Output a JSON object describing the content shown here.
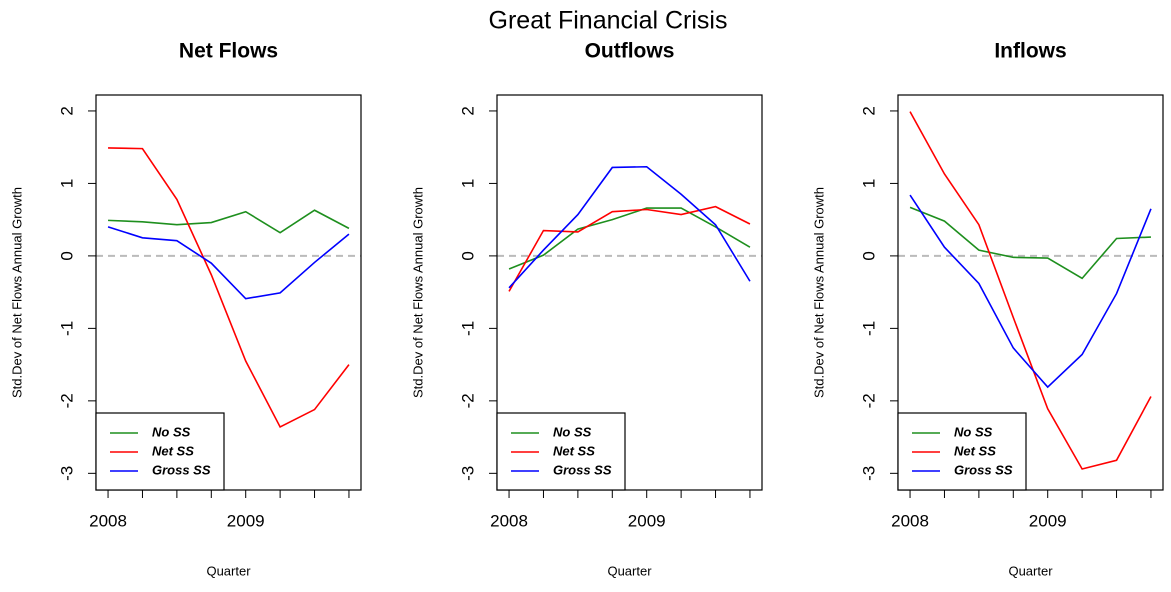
{
  "title": "Great Financial Crisis",
  "chart_data": [
    {
      "type": "line",
      "title": "Net Flows",
      "xlabel": "Quarter",
      "ylabel": "Std.Dev of Net Flows Annual Growth",
      "categories": [
        "2008",
        null,
        null,
        null,
        "2009",
        null,
        null,
        null
      ],
      "ylim": [
        -3.23,
        2.22
      ],
      "yticks": [
        -3,
        -2,
        -1,
        0,
        1,
        2
      ],
      "reference_line": 0,
      "legend": "bottomleft",
      "series": [
        {
          "name": "No SS",
          "color": "#1e8f1e",
          "values": [
            0.49,
            0.47,
            0.43,
            0.46,
            0.61,
            0.32,
            0.63,
            0.38
          ]
        },
        {
          "name": "Net SS",
          "color": "#ff0000",
          "values": [
            1.49,
            1.48,
            0.78,
            -0.26,
            -1.45,
            -2.36,
            -2.12,
            -1.5
          ]
        },
        {
          "name": "Gross SS",
          "color": "#0000ff",
          "values": [
            0.4,
            0.25,
            0.21,
            -0.1,
            -0.59,
            -0.51,
            -0.09,
            0.3
          ]
        }
      ]
    },
    {
      "type": "line",
      "title": "Outflows",
      "xlabel": "Quarter",
      "ylabel": "Std.Dev of Net Flows Annual Growth",
      "categories": [
        "2008",
        null,
        null,
        null,
        "2009",
        null,
        null,
        null
      ],
      "ylim": [
        -3.23,
        2.22
      ],
      "yticks": [
        -3,
        -2,
        -1,
        0,
        1,
        2
      ],
      "reference_line": 0,
      "legend": "bottomleft",
      "series": [
        {
          "name": "No SS",
          "color": "#1e8f1e",
          "values": [
            -0.18,
            0.01,
            0.37,
            0.5,
            0.66,
            0.66,
            0.4,
            0.12
          ]
        },
        {
          "name": "Net SS",
          "color": "#ff0000",
          "values": [
            -0.49,
            0.35,
            0.33,
            0.61,
            0.64,
            0.57,
            0.68,
            0.44
          ]
        },
        {
          "name": "Gross SS",
          "color": "#0000ff",
          "values": [
            -0.44,
            0.08,
            0.57,
            1.22,
            1.23,
            0.85,
            0.43,
            -0.35
          ]
        }
      ]
    },
    {
      "type": "line",
      "title": "Inflows",
      "xlabel": "Quarter",
      "ylabel": "Std.Dev of Net Flows Annual Growth",
      "categories": [
        "2008",
        null,
        null,
        null,
        "2009",
        null,
        null,
        null
      ],
      "ylim": [
        -3.23,
        2.22
      ],
      "yticks": [
        -3,
        -2,
        -1,
        0,
        1,
        2
      ],
      "reference_line": 0,
      "legend": "bottomleft",
      "series": [
        {
          "name": "No SS",
          "color": "#1e8f1e",
          "values": [
            0.67,
            0.48,
            0.08,
            -0.02,
            -0.03,
            -0.31,
            0.24,
            0.26
          ]
        },
        {
          "name": "Net SS",
          "color": "#ff0000",
          "values": [
            1.99,
            1.13,
            0.43,
            -0.85,
            -2.11,
            -2.94,
            -2.82,
            -1.94
          ]
        },
        {
          "name": "Gross SS",
          "color": "#0000ff",
          "values": [
            0.84,
            0.12,
            -0.38,
            -1.27,
            -1.81,
            -1.36,
            -0.52,
            0.65
          ]
        }
      ]
    }
  ]
}
